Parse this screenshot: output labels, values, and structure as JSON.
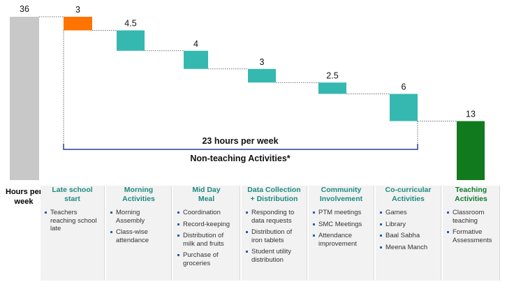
{
  "chart_data": {
    "type": "waterfall",
    "colors": {
      "total": "#c8c8c8",
      "late": "#ff7300",
      "activity": "#35b8b0",
      "teaching": "#117a1e"
    },
    "total_bar": {
      "label": "Hours per\nweek",
      "value": 36,
      "value_label": "36"
    },
    "steps": [
      {
        "value": 3,
        "value_label": "3",
        "color_key": "late"
      },
      {
        "value": 4.5,
        "value_label": "4.5",
        "color_key": "activity"
      },
      {
        "value": 4,
        "value_label": "4",
        "color_key": "activity"
      },
      {
        "value": 3,
        "value_label": "3",
        "color_key": "activity"
      },
      {
        "value": 2.5,
        "value_label": "2.5",
        "color_key": "activity"
      },
      {
        "value": 6,
        "value_label": "6",
        "color_key": "activity"
      }
    ],
    "final_bar": {
      "value": 13,
      "value_label": "13",
      "color_key": "teaching"
    },
    "bracket": {
      "text": "23 hours per week",
      "label": "Non-teaching Activities*"
    },
    "categories": [
      {
        "title": "Late school\nstart",
        "items": [
          "Teachers reaching school late"
        ]
      },
      {
        "title": "Morning\nActivities",
        "items": [
          "Morning Assembly",
          "Class-wise attendance"
        ]
      },
      {
        "title": "Mid Day\nMeal",
        "items": [
          "Coordination",
          "Record-keeping",
          "Distribution of milk and fruits",
          "Purchase of groceries"
        ]
      },
      {
        "title": "Data Collection\n+ Distribution",
        "items": [
          "Responding to data requests",
          "Distribution of iron tablets",
          "Student utility distribution"
        ]
      },
      {
        "title": "Community\nInvolvement",
        "items": [
          "PTM meetings",
          "SMC Meetings",
          "Attendance improvement"
        ]
      },
      {
        "title": "Co-curricular\nActivities",
        "items": [
          "Games",
          "Library",
          "Baal Sabha",
          "Meena Manch"
        ]
      },
      {
        "title": "Teaching\nActivities",
        "items": [
          "Classroom teaching",
          "Formative Assessments"
        ]
      }
    ]
  }
}
